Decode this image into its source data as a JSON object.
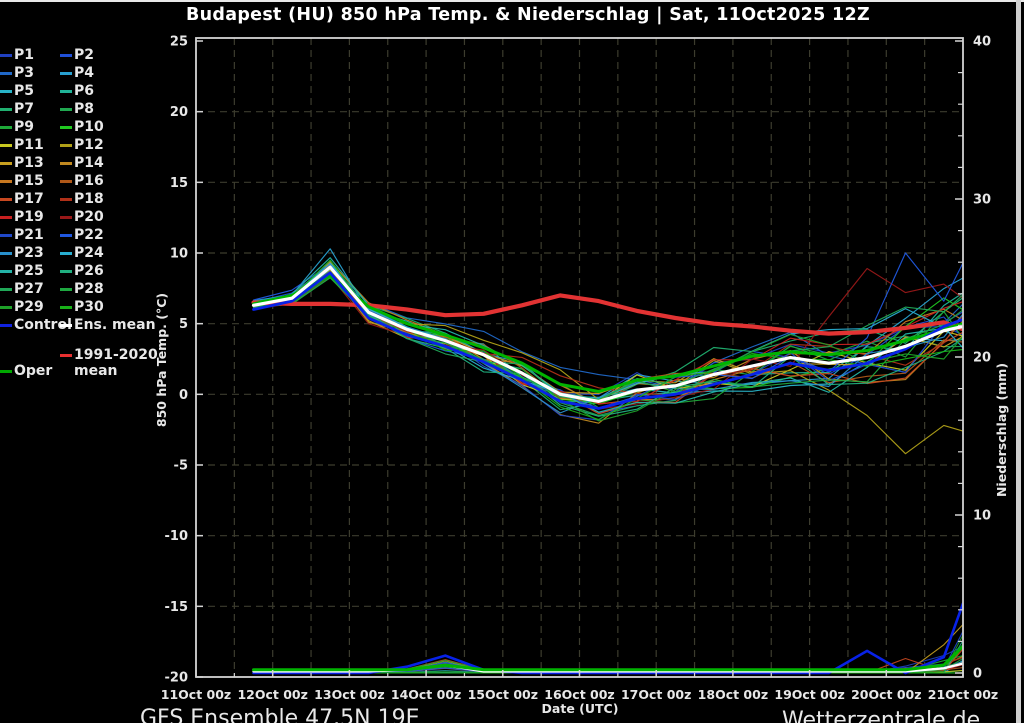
{
  "title": "Budapest (HU) 850 hPa Temp. & Niederschlag | Sat, 11Oct2025 12Z",
  "footer": {
    "model_label": "GFS Ensemble 47.5N 19E",
    "site_label": "Wetterzentrale.de"
  },
  "legend": {
    "members": [
      {
        "label": "P1",
        "color": "#2040c0"
      },
      {
        "label": "P2",
        "color": "#2050d8"
      },
      {
        "label": "P3",
        "color": "#2068c8"
      },
      {
        "label": "P4",
        "color": "#28a0d0"
      },
      {
        "label": "P5",
        "color": "#28b4c8"
      },
      {
        "label": "P6",
        "color": "#20b498"
      },
      {
        "label": "P7",
        "color": "#20b070"
      },
      {
        "label": "P8",
        "color": "#20a850"
      },
      {
        "label": "P9",
        "color": "#1ea838"
      },
      {
        "label": "P10",
        "color": "#20c820"
      },
      {
        "label": "P11",
        "color": "#c8c820"
      },
      {
        "label": "P12",
        "color": "#b0a018"
      },
      {
        "label": "P13",
        "color": "#c8a020"
      },
      {
        "label": "P14",
        "color": "#c08820"
      },
      {
        "label": "P15",
        "color": "#c87820"
      },
      {
        "label": "P16",
        "color": "#b05818"
      },
      {
        "label": "P17",
        "color": "#c84820"
      },
      {
        "label": "P18",
        "color": "#b03018"
      },
      {
        "label": "P19",
        "color": "#c82020"
      },
      {
        "label": "P20",
        "color": "#981818"
      },
      {
        "label": "P21",
        "color": "#2048c8"
      },
      {
        "label": "P22",
        "color": "#2058e0"
      },
      {
        "label": "P23",
        "color": "#2890cc"
      },
      {
        "label": "P24",
        "color": "#28aed0"
      },
      {
        "label": "P25",
        "color": "#24b4a8"
      },
      {
        "label": "P26",
        "color": "#20b080"
      },
      {
        "label": "P27",
        "color": "#20a858"
      },
      {
        "label": "P28",
        "color": "#1ea840"
      },
      {
        "label": "P29",
        "color": "#1ea028"
      },
      {
        "label": "P30",
        "color": "#18b018"
      }
    ],
    "control": {
      "label": "Control",
      "color": "#1022e0"
    },
    "ens_mean": {
      "label": "Ens. mean",
      "color": "#ffffff"
    },
    "climate": {
      "label_line1": "1991-2020",
      "label_line2": "mean",
      "color": "#e83030"
    },
    "oper": {
      "label": "Oper",
      "color": "#00a800"
    }
  },
  "chart_data": {
    "type": "line",
    "title": "Budapest (HU) 850 hPa Temp. & Niederschlag | Sat, 11Oct2025 12Z",
    "xlabel": "Date (UTC)",
    "ylabel_left": "850 hPa Temp. (°C)",
    "ylabel_right": "Niederschlag (mm)",
    "x_tick_labels": [
      "11Oct 00z",
      "12Oct 00z",
      "13Oct 00z",
      "14Oct 00z",
      "15Oct 00z",
      "16Oct 00z",
      "17Oct 00z",
      "18Oct 00z",
      "19Oct 00z",
      "20Oct 00z",
      "21Oct 00z"
    ],
    "x_tick_days": [
      11,
      12,
      13,
      14,
      15,
      16,
      17,
      18,
      19,
      20,
      21
    ],
    "x_range_days": [
      11,
      21
    ],
    "ylim_left": [
      -20,
      25
    ],
    "yticks_left": [
      25,
      20,
      15,
      10,
      5,
      0,
      -5,
      -10,
      -15,
      -20
    ],
    "ylim_right": [
      0,
      40
    ],
    "yticks_right": [
      40,
      30,
      20,
      10,
      0
    ],
    "grid": "dashed, vertical every 12h, horizontal every 5C",
    "x": [
      11.75,
      12.25,
      12.75,
      13.25,
      13.75,
      14.25,
      14.75,
      15.25,
      15.75,
      16.25,
      16.75,
      17.25,
      17.75,
      18.25,
      18.75,
      19.25,
      19.75,
      20.25,
      20.75,
      21.0
    ],
    "series": {
      "ens_mean_temp": [
        6.3,
        6.8,
        9.0,
        5.8,
        4.6,
        3.8,
        2.8,
        1.5,
        0.0,
        -0.5,
        0.3,
        0.6,
        1.4,
        2.0,
        2.6,
        2.2,
        2.6,
        3.4,
        4.5,
        4.8
      ],
      "control_temp": [
        6.0,
        6.6,
        8.6,
        5.4,
        4.2,
        3.4,
        2.3,
        1.0,
        -0.5,
        -1.0,
        -0.3,
        0.0,
        0.7,
        1.4,
        2.2,
        1.7,
        2.2,
        3.2,
        4.8,
        5.3
      ],
      "oper_temp": [
        6.4,
        7.0,
        8.4,
        6.2,
        5.0,
        4.2,
        3.3,
        2.2,
        0.7,
        0.2,
        1.0,
        1.3,
        2.0,
        2.7,
        3.0,
        2.8,
        3.1,
        3.8,
        4.6,
        5.0
      ],
      "climate_mean_temp": [
        6.5,
        6.4,
        6.4,
        6.3,
        6.0,
        5.6,
        5.7,
        6.3,
        7.0,
        6.6,
        5.9,
        5.4,
        5.0,
        4.8,
        4.5,
        4.3,
        4.4,
        4.7,
        5.1,
        4.6
      ],
      "ens_mean_precip": [
        0.1,
        0.1,
        0.1,
        0.1,
        0.2,
        0.5,
        0.1,
        0.1,
        0.1,
        0.1,
        0.1,
        0.1,
        0.1,
        0.1,
        0.1,
        0.1,
        0.1,
        0.1,
        0.3,
        0.6
      ],
      "control_precip": [
        0,
        0,
        0,
        0,
        0.4,
        1.1,
        0.2,
        0,
        0,
        0,
        0,
        0,
        0,
        0,
        0,
        0,
        1.4,
        0,
        1.0,
        4.4
      ],
      "oper_precip": [
        0.2,
        0.2,
        0.2,
        0.2,
        0.2,
        0.5,
        0.2,
        0.2,
        0.2,
        0.2,
        0.2,
        0.2,
        0.2,
        0.2,
        0.2,
        0.2,
        0.2,
        0.2,
        0.5,
        1.7
      ]
    },
    "member_spread_envelope": [
      0.6,
      0.7,
      1.0,
      1.2,
      1.3,
      1.5,
      1.7,
      1.8,
      1.9,
      2.0,
      2.1,
      2.2,
      2.3,
      2.4,
      2.6,
      2.8,
      3.0,
      3.2,
      3.4,
      3.5
    ],
    "member_overrides_temp": {
      "3": {
        "2": 10.3
      },
      "11": {
        "15": 0.3,
        "16": -1.5,
        "17": -4.2,
        "18": -2.2,
        "19": -2.6
      },
      "19": {
        "15": 5.5,
        "16": 8.9,
        "17": 7.2,
        "18": 7.8,
        "19": 6.8
      },
      "21": {
        "16": 4.0,
        "17": 10.0,
        "18": 6.6,
        "19": 9.3
      }
    },
    "colors": {
      "background": "#000000",
      "grid": "#3c3c2e",
      "axis_frame": "#d4d4d4",
      "text": "#e8e8e8",
      "ens_mean": "#ffffff",
      "control": "#0822e8",
      "oper": "#00b400",
      "climate_mean": "#e23333"
    }
  }
}
